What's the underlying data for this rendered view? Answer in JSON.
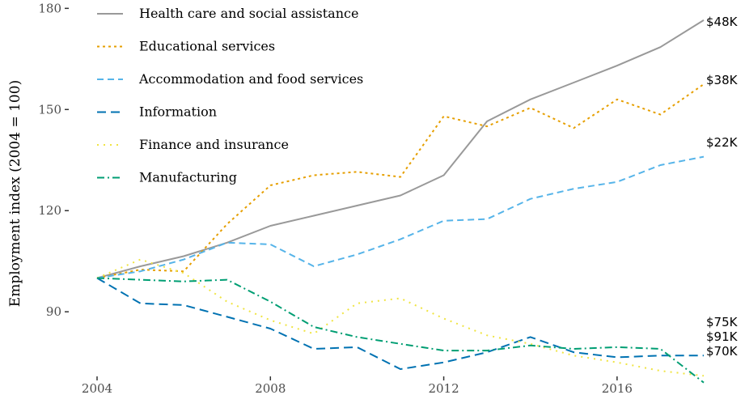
{
  "chart_data": {
    "type": "line",
    "ylabel": "Employment index (2004 = 100)",
    "xlabel": "",
    "xlim": [
      2004,
      2018
    ],
    "ylim": [
      73,
      182
    ],
    "x_ticks": [
      2004,
      2008,
      2012,
      2016
    ],
    "y_ticks": [
      90,
      120,
      150,
      180
    ],
    "legend_position": "top-left",
    "grid": false,
    "x": [
      2004,
      2005,
      2006,
      2007,
      2008,
      2009,
      2010,
      2011,
      2012,
      2013,
      2014,
      2015,
      2016,
      2017,
      2018
    ],
    "series": [
      {
        "name": "Health care and social assistance",
        "color": "#999999",
        "dash": "solid",
        "end_label": "$48K",
        "values": [
          100,
          103.5,
          106.5,
          110.5,
          115.5,
          118.5,
          121.5,
          124.5,
          130.5,
          146.5,
          153,
          158,
          163,
          168.5,
          176.5
        ]
      },
      {
        "name": "Educational services",
        "color": "#E69F00",
        "dash": "dotted",
        "end_label": "$38K",
        "values": [
          100,
          102.5,
          102,
          116,
          127.5,
          130.5,
          131.5,
          130,
          148,
          145,
          150.5,
          144.5,
          153,
          148.5,
          157.5
        ]
      },
      {
        "name": "Accommodation and food services",
        "color": "#56B4E9",
        "dash": "dashed",
        "end_label": "$22K",
        "values": [
          100,
          102,
          105.5,
          110.5,
          110,
          103.5,
          107,
          111.5,
          117,
          117.5,
          123.5,
          126.5,
          128.5,
          133.5,
          136
        ]
      },
      {
        "name": "Information",
        "color": "#0072B2",
        "dash": "longdash",
        "end_label": "$75K",
        "values": [
          100,
          92.5,
          92,
          88.5,
          85,
          79,
          79.5,
          73,
          75,
          78,
          82.5,
          78,
          76.5,
          77,
          77
        ]
      },
      {
        "name": "Finance and insurance",
        "color": "#F0E442",
        "dash": "dotted-sparse",
        "end_label": "$91K",
        "values": [
          100,
          105.5,
          101.5,
          93,
          87.5,
          83.5,
          92.5,
          94,
          88,
          83,
          80.5,
          77,
          75,
          72.5,
          71
        ]
      },
      {
        "name": "Manufacturing",
        "color": "#009E73",
        "dash": "dotdash",
        "end_label": "$70K",
        "values": [
          100,
          99.5,
          99,
          99.5,
          93,
          85.5,
          82.5,
          80.5,
          78.5,
          78.5,
          80,
          79,
          79.5,
          79,
          69
        ]
      }
    ]
  }
}
